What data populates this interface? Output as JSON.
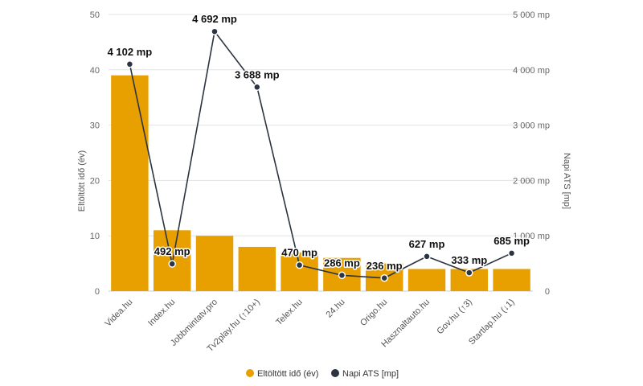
{
  "chart_data": {
    "type": "bar",
    "categories": [
      "Videa.hu",
      "Index.hu",
      "Jobbmintatv.pro",
      "Tv2play.hu (↑10+)",
      "Telex.hu",
      "24.hu",
      "Origo.hu",
      "Hasznaltauto.hu",
      "Gov.hu (↑3)",
      "Startlap.hu (↓1)"
    ],
    "series": [
      {
        "name": "Eltöltött idő (év)",
        "type": "bar",
        "axis": "left",
        "color": "#E8A000",
        "values": [
          39,
          11,
          10,
          8,
          7,
          6,
          5,
          4,
          4,
          4
        ]
      },
      {
        "name": "Napi ATS [mp]",
        "type": "line",
        "axis": "right",
        "color": "#2B3440",
        "values": [
          4102,
          492,
          4692,
          3688,
          470,
          286,
          236,
          627,
          333,
          685
        ],
        "labels": [
          "4 102 mp",
          "492 mp",
          "4 692 mp",
          "3 688 mp",
          "470 mp",
          "286 mp",
          "236 mp",
          "627 mp",
          "333 mp",
          "685 mp"
        ]
      }
    ],
    "y_left": {
      "label": "Eltöltött idő (év)",
      "ylim": [
        0,
        50
      ],
      "ticks": [
        0,
        10,
        20,
        30,
        40,
        50
      ],
      "tick_labels": [
        "0",
        "10",
        "20",
        "30",
        "40",
        "50"
      ]
    },
    "y_right": {
      "label": "Napi ATS [mp]",
      "ylim": [
        0,
        5000
      ],
      "ticks": [
        0,
        1000,
        2000,
        3000,
        4000,
        5000
      ],
      "tick_labels": [
        "0",
        "1 000 mp",
        "2 000 mp",
        "3 000 mp",
        "4 000 mp",
        "5 000 mp"
      ]
    },
    "grid": true,
    "legend": "bottom"
  }
}
